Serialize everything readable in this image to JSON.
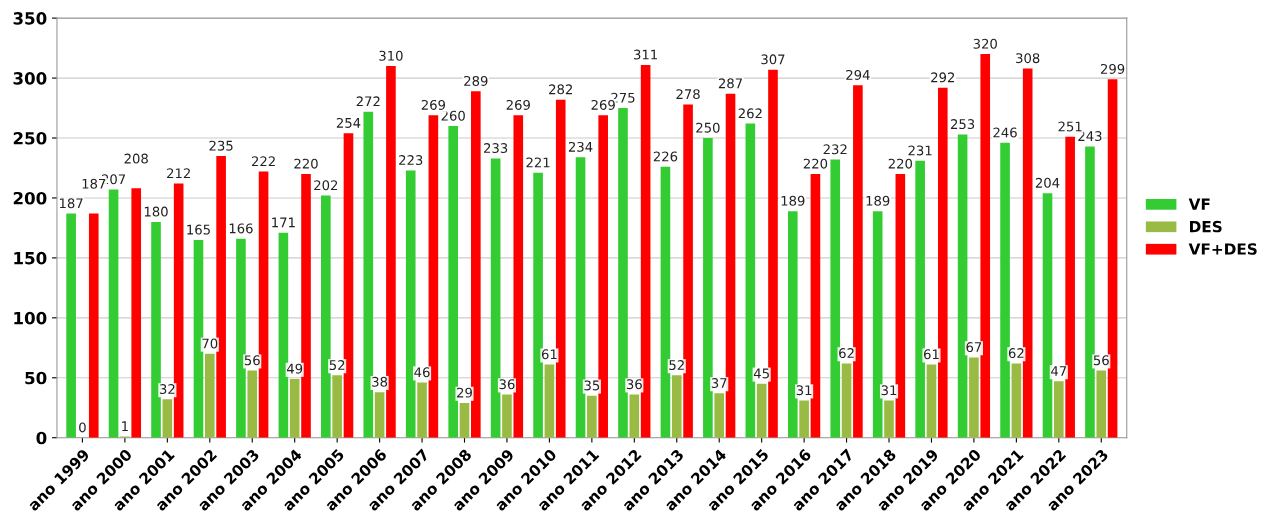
{
  "chart_data": {
    "type": "bar",
    "categories": [
      "ano 1999",
      "ano 2000",
      "ano 2001",
      "ano 2002",
      "ano 2003",
      "ano 2004",
      "ano 2005",
      "ano 2006",
      "ano 2007",
      "ano 2008",
      "ano 2009",
      "ano 2010",
      "ano 2011",
      "ano 2012",
      "ano 2013",
      "ano 2014",
      "ano 2015",
      "ano 2016",
      "ano 2017",
      "ano 2018",
      "ano 2019",
      "ano 2020",
      "ano 2021",
      "ano 2022",
      "ano 2023"
    ],
    "series": [
      {
        "name": "VF",
        "color": "#33cc33",
        "values": [
          187,
          207,
          180,
          165,
          166,
          171,
          202,
          272,
          223,
          260,
          233,
          221,
          234,
          275,
          226,
          250,
          262,
          189,
          232,
          189,
          231,
          253,
          246,
          204,
          243
        ]
      },
      {
        "name": "DES",
        "color": "#99bb44",
        "values": [
          0,
          1,
          32,
          70,
          56,
          49,
          52,
          38,
          46,
          29,
          36,
          61,
          35,
          36,
          52,
          37,
          45,
          31,
          62,
          31,
          61,
          67,
          62,
          47,
          56
        ]
      },
      {
        "name": "VF+DES",
        "color": "#ff0000",
        "values": [
          187,
          208,
          212,
          235,
          222,
          220,
          254,
          310,
          269,
          289,
          269,
          282,
          269,
          311,
          278,
          287,
          307,
          220,
          294,
          220,
          292,
          320,
          308,
          251,
          299
        ]
      }
    ],
    "ylim": [
      0,
      350
    ],
    "yticks": [
      0,
      50,
      100,
      150,
      200,
      250,
      300,
      350
    ],
    "grid": "y",
    "legend": "right",
    "data_labels": true
  }
}
